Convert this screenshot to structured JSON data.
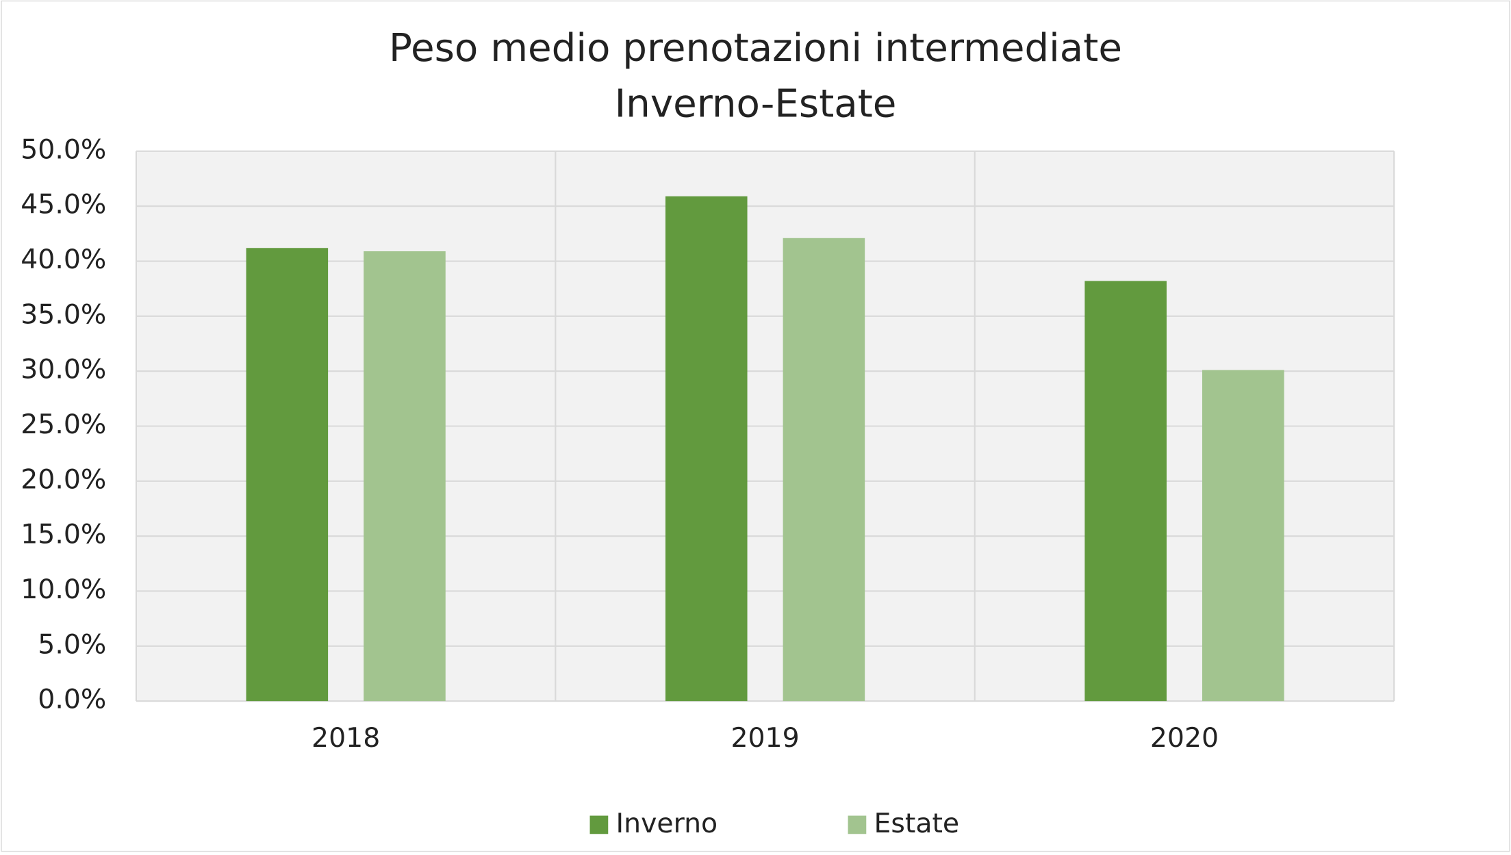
{
  "chart_data": {
    "type": "bar",
    "title": "Peso medio prenotazioni intermediate",
    "subtitle": "Inverno-Estate",
    "categories": [
      "2018",
      "2019",
      "2020"
    ],
    "series": [
      {
        "name": "Inverno",
        "color": "#629a3e",
        "values": [
          41.2,
          45.9,
          38.2
        ]
      },
      {
        "name": "Estate",
        "color": "#a2c48f",
        "values": [
          40.9,
          42.1,
          30.1
        ]
      }
    ],
    "ylim": [
      0,
      50
    ],
    "yticks": [
      {
        "value": 0,
        "label": "0.0%"
      },
      {
        "value": 5,
        "label": "5.0%"
      },
      {
        "value": 10,
        "label": "10.0%"
      },
      {
        "value": 15,
        "label": "15.0%"
      },
      {
        "value": 20,
        "label": "20.0%"
      },
      {
        "value": 25,
        "label": "25.0%"
      },
      {
        "value": 30,
        "label": "30.0%"
      },
      {
        "value": 35,
        "label": "35.0%"
      },
      {
        "value": 40,
        "label": "40.0%"
      },
      {
        "value": 45,
        "label": "45.0%"
      },
      {
        "value": 50,
        "label": "50.0%"
      }
    ],
    "grid": true,
    "legend": "bottom"
  }
}
